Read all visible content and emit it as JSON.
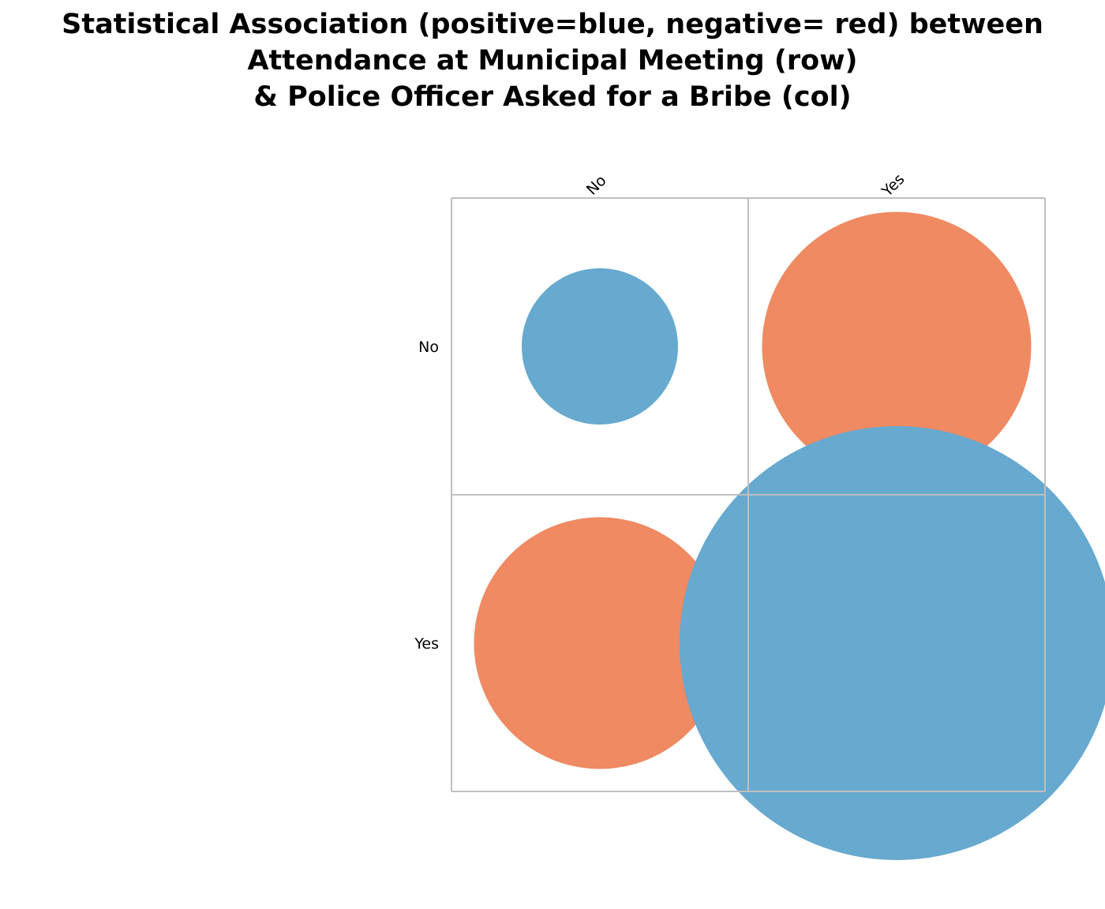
{
  "chart_data": {
    "type": "heatmap",
    "title_lines": [
      "Statistical Association (positive=blue, negative= red) between",
      "Attendance at Municipal Meeting (row)",
      "& Police Officer Asked for a Bribe (col)"
    ],
    "row_labels": [
      "No",
      "Yes"
    ],
    "col_labels": [
      "No",
      "Yes"
    ],
    "cells": [
      {
        "row": "No",
        "col": "No",
        "sign": "positive",
        "relative_magnitude": 0.36
      },
      {
        "row": "No",
        "col": "Yes",
        "sign": "negative",
        "relative_magnitude": 0.62
      },
      {
        "row": "Yes",
        "col": "No",
        "sign": "negative",
        "relative_magnitude": 0.58
      },
      {
        "row": "Yes",
        "col": "Yes",
        "sign": "positive",
        "relative_magnitude": 1.0
      }
    ],
    "colors": {
      "positive": "#67a9cf",
      "negative": "#ef8a62",
      "grid": "#bfbfbf"
    },
    "grid": true
  }
}
